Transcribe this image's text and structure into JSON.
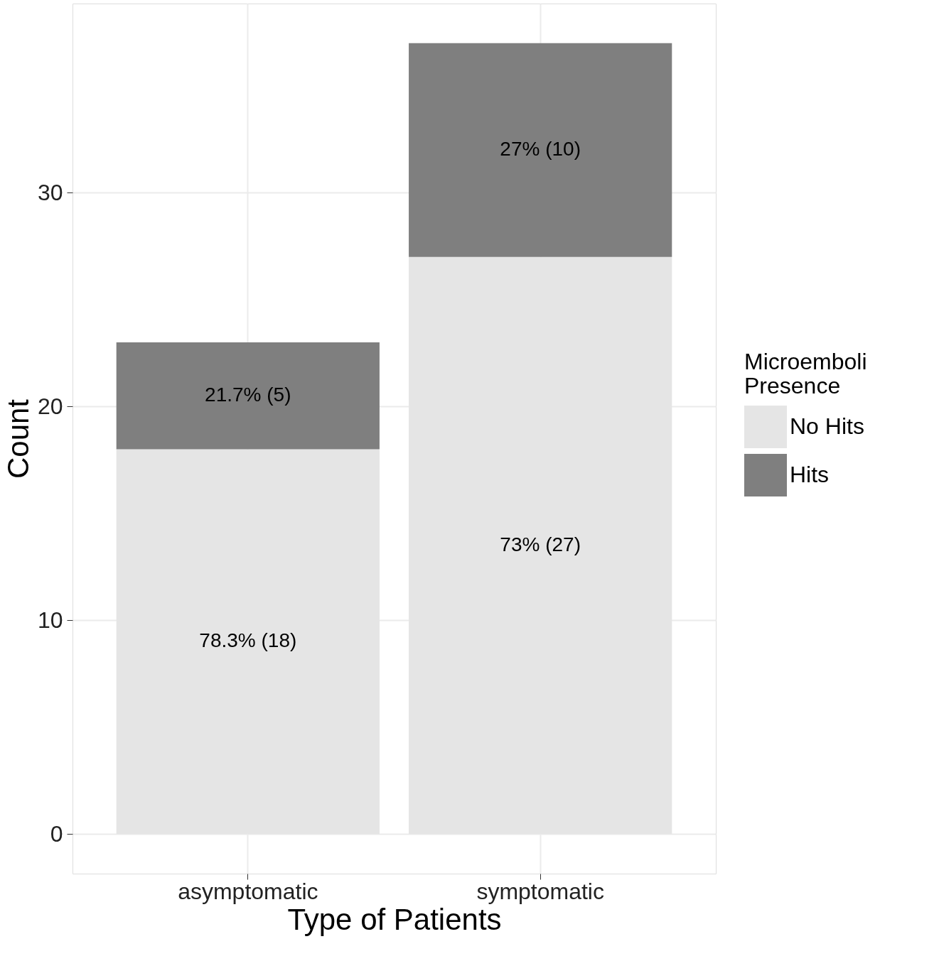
{
  "chart_data": {
    "type": "bar",
    "stacked": true,
    "xlabel": "Type of Patients",
    "ylabel": "Count",
    "legend_title": "Microemboli Presence",
    "legend": "right",
    "categories": [
      "asymptomatic",
      "symptomatic"
    ],
    "series": [
      {
        "name": "No Hits",
        "color": "#e5e5e5",
        "values": [
          18,
          27
        ],
        "value_labels": [
          "78.3% (18)",
          "73% (27)"
        ]
      },
      {
        "name": "Hits",
        "color": "#7f7f7f",
        "values": [
          5,
          10
        ],
        "value_labels": [
          "21.7% (5)",
          "27% (10)"
        ]
      }
    ],
    "ylim": [
      -1.85,
      38.85
    ],
    "yticks": [
      0,
      10,
      20,
      30
    ],
    "grid": true
  }
}
